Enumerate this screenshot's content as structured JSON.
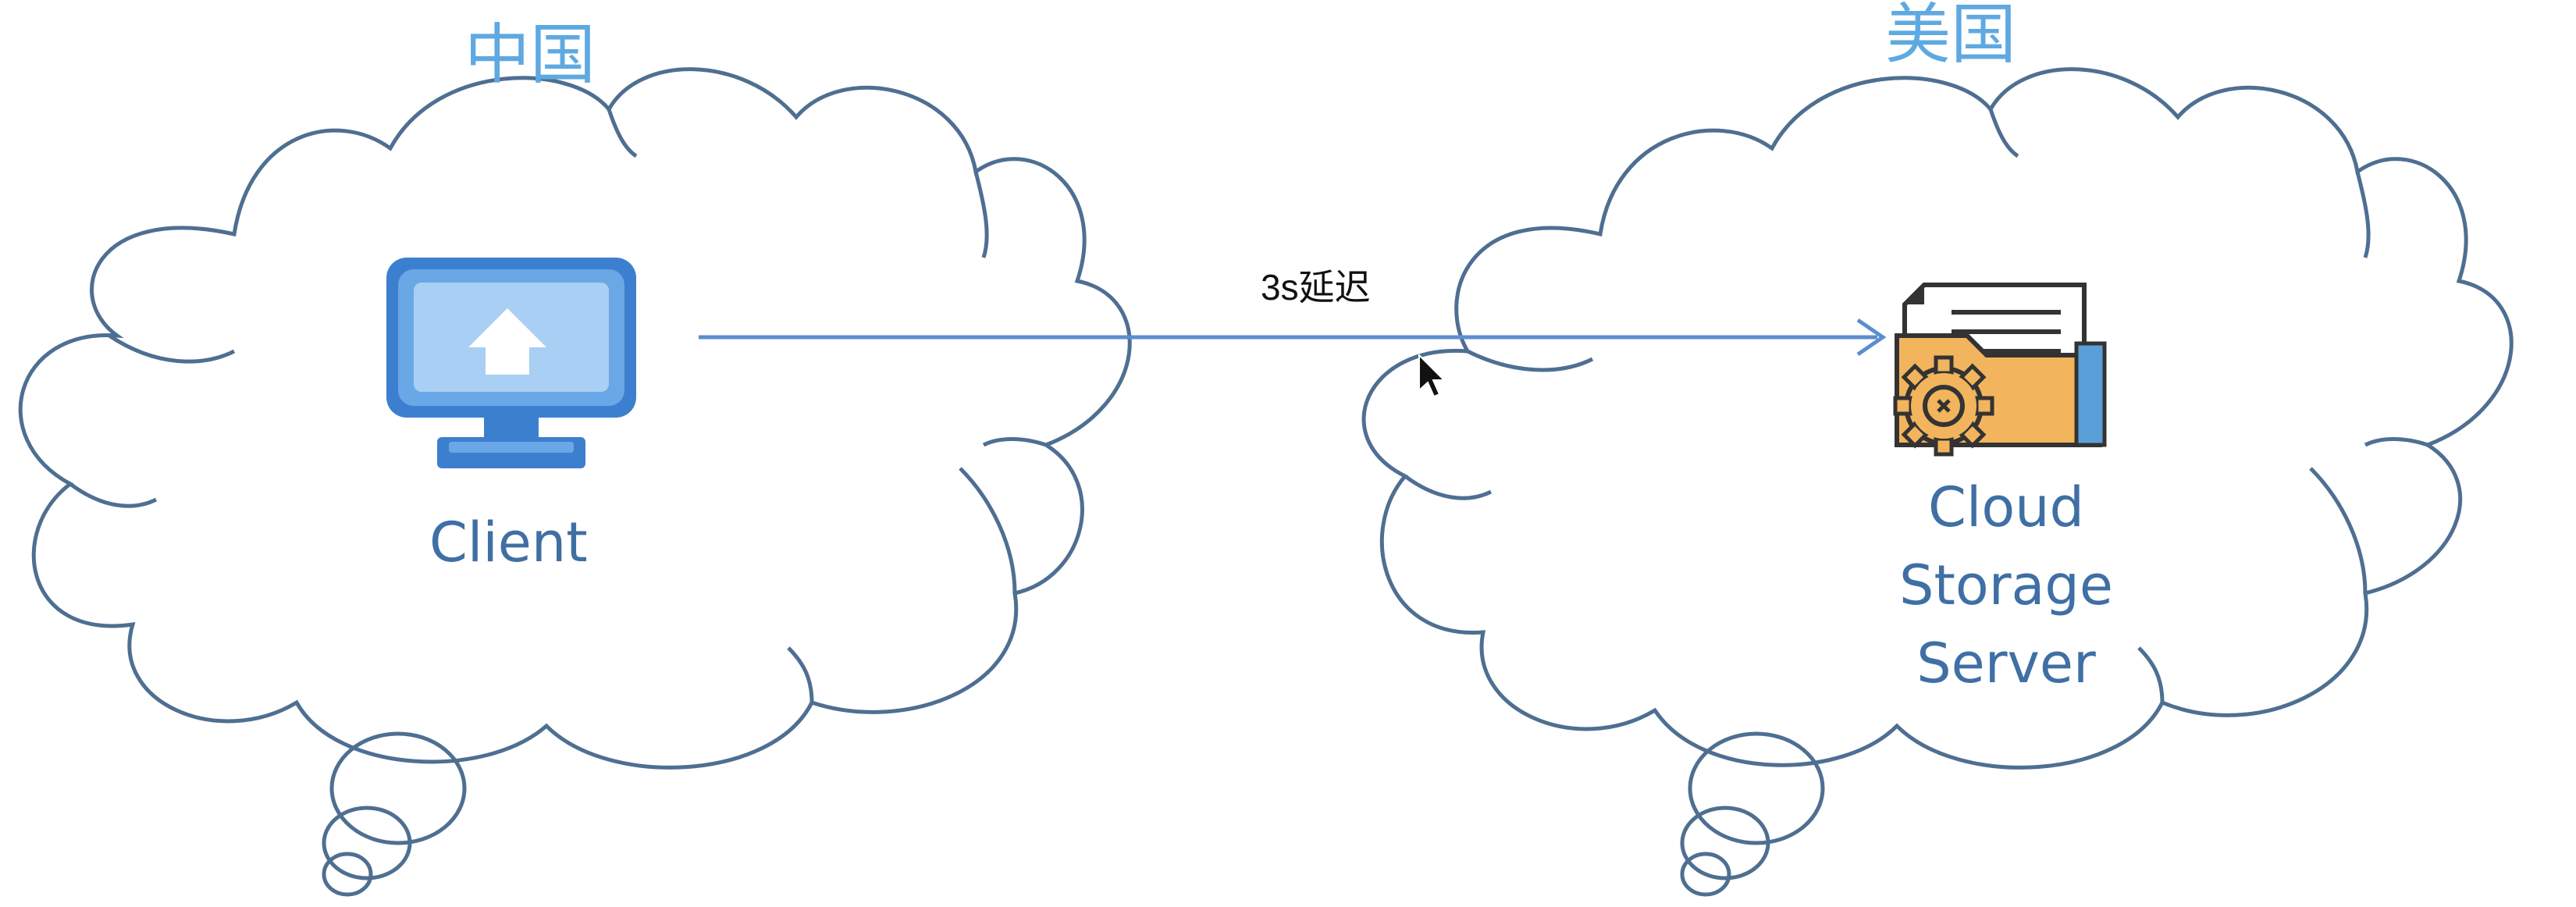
{
  "regions": {
    "left": {
      "label": "中国"
    },
    "right": {
      "label": "美国"
    }
  },
  "nodes": {
    "client": {
      "label": "Client",
      "icon": "monitor-upload-icon"
    },
    "server": {
      "lines": [
        "Cloud",
        "Storage",
        "Server"
      ],
      "icon": "folder-gear-icon"
    }
  },
  "connection": {
    "label": "3s延迟"
  },
  "colors": {
    "cloud_stroke": "#4e6f91",
    "region_label": "#5fa9e1",
    "node_label": "#3f6fa4",
    "arrow": "#5b8ed0",
    "folder": "#f2b45c",
    "monitor": "#4a8fdc"
  }
}
